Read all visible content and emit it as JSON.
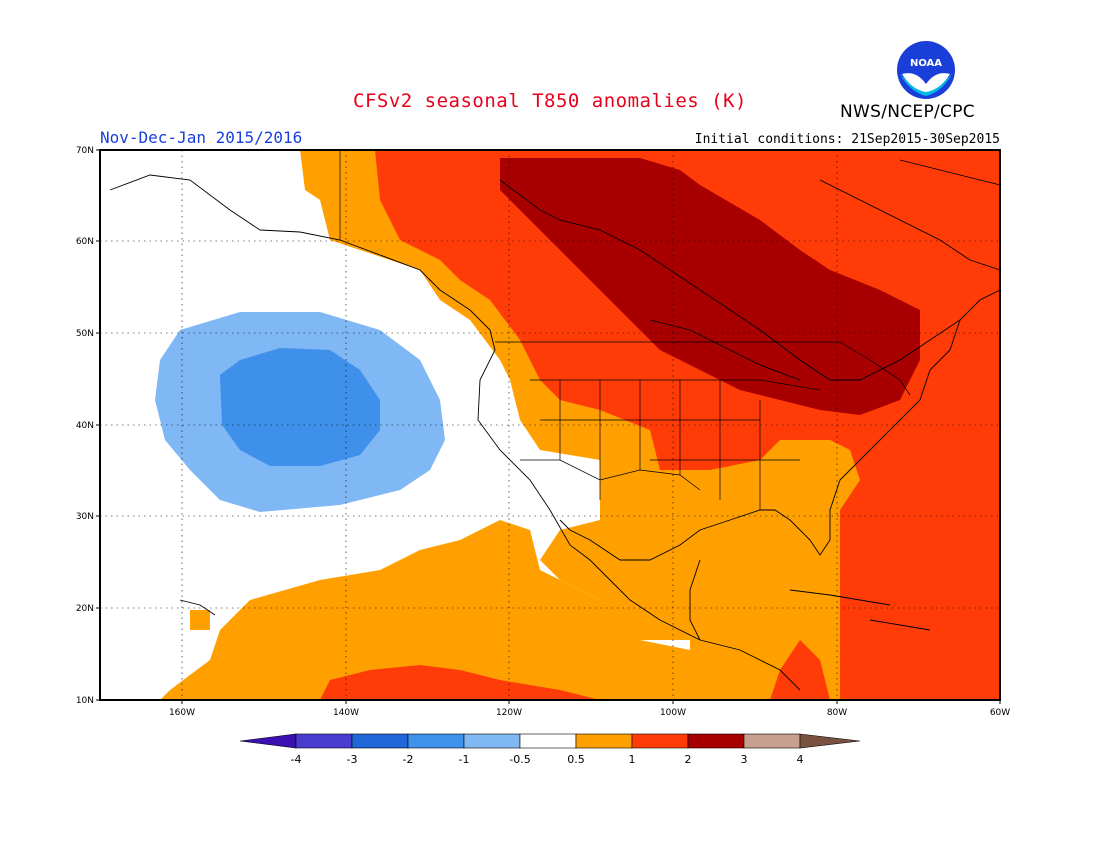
{
  "header": {
    "title": "CFSv2 seasonal T850 anomalies (K)",
    "agency": "NWS/NCEP/CPC",
    "season": "Nov-Dec-Jan 2015/2016",
    "initial_conditions": "Initial conditions: 21Sep2015-30Sep2015",
    "logo_text": "NOAA"
  },
  "map": {
    "lon_range": [
      -172,
      -60
    ],
    "lat_range": [
      10,
      70
    ],
    "lat_labels": [
      "10N",
      "20N",
      "30N",
      "40N",
      "50N",
      "60N",
      "70N"
    ],
    "lon_labels": [
      "160W",
      "140W",
      "120W",
      "100W",
      "80W",
      "60W"
    ],
    "fill_colors": {
      "neg4": "#4028c4",
      "neg3": "#1f5fd6",
      "neg2": "#3e90ea",
      "neg1": "#7fb8f4",
      "neutral": "#ffffff",
      "pos05": "#ffa000",
      "pos1": "#ff3c08",
      "pos2": "#a80000",
      "pos3": "#c8a090",
      "pos4": "#7a5040"
    }
  },
  "colorbar": {
    "labels": [
      "-4",
      "-3",
      "-2",
      "-1",
      "-0.5",
      "0.5",
      "1",
      "2",
      "3",
      "4"
    ],
    "colors": [
      "#3a10b0",
      "#4a3cd0",
      "#1f66d8",
      "#3e92ec",
      "#80b8f4",
      "#ffffff",
      "#ffa000",
      "#ff3c08",
      "#a80000",
      "#c8a090",
      "#7a5040"
    ]
  }
}
